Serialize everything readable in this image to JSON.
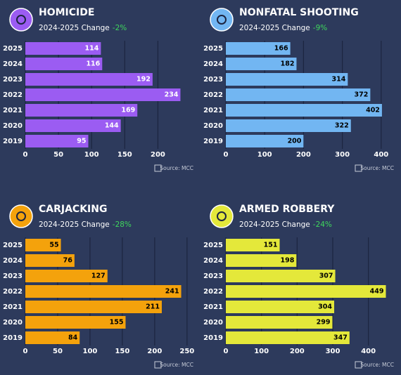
{
  "chart_data": [
    {
      "type": "bar",
      "title": "HOMICIDE",
      "subtitle": "2024-2025 Change",
      "change": "-2%",
      "categories": [
        "2025",
        "2024",
        "2023",
        "2022",
        "2021",
        "2020",
        "2019"
      ],
      "values": [
        114,
        116,
        192,
        234,
        169,
        144,
        95
      ],
      "color": "#9b5cf2",
      "label_color": "#ffffff",
      "xlim": [
        0,
        242
      ],
      "xticks": [
        0,
        50,
        100,
        150,
        200
      ],
      "grid": true,
      "source": "Source: MCC"
    },
    {
      "type": "bar",
      "title": "NONFATAL SHOOTING",
      "subtitle": "2024-2025 Change",
      "change": "-9%",
      "categories": [
        "2025",
        "2024",
        "2023",
        "2022",
        "2021",
        "2020",
        "2019"
      ],
      "values": [
        166,
        182,
        314,
        372,
        402,
        322,
        200
      ],
      "color": "#72b6f2",
      "label_color": "#000000",
      "xlim": [
        0,
        413
      ],
      "xticks": [
        0,
        100,
        200,
        300,
        400
      ],
      "grid": true,
      "source": "Source: MCC"
    },
    {
      "type": "bar",
      "title": "CARJACKING",
      "subtitle": "2024-2025 Change",
      "change": "-28%",
      "categories": [
        "2025",
        "2024",
        "2023",
        "2022",
        "2021",
        "2020",
        "2019"
      ],
      "values": [
        55,
        76,
        127,
        241,
        211,
        155,
        84
      ],
      "color": "#f4a20c",
      "label_color": "#000000",
      "xlim": [
        0,
        248
      ],
      "xticks": [
        0,
        50,
        100,
        150,
        200,
        250
      ],
      "grid": true,
      "source": "Source: MCC"
    },
    {
      "type": "bar",
      "title": "ARMED ROBBERY",
      "subtitle": "2024-2025 Change",
      "change": "-24%",
      "categories": [
        "2025",
        "2024",
        "2023",
        "2022",
        "2021",
        "2020",
        "2019"
      ],
      "values": [
        151,
        198,
        307,
        449,
        304,
        299,
        347
      ],
      "color": "#e4e83a",
      "label_color": "#000000",
      "xlim": [
        0,
        450
      ],
      "xticks": [
        0,
        100,
        200,
        300,
        400
      ],
      "grid": true,
      "source": "Source: MCC"
    }
  ]
}
